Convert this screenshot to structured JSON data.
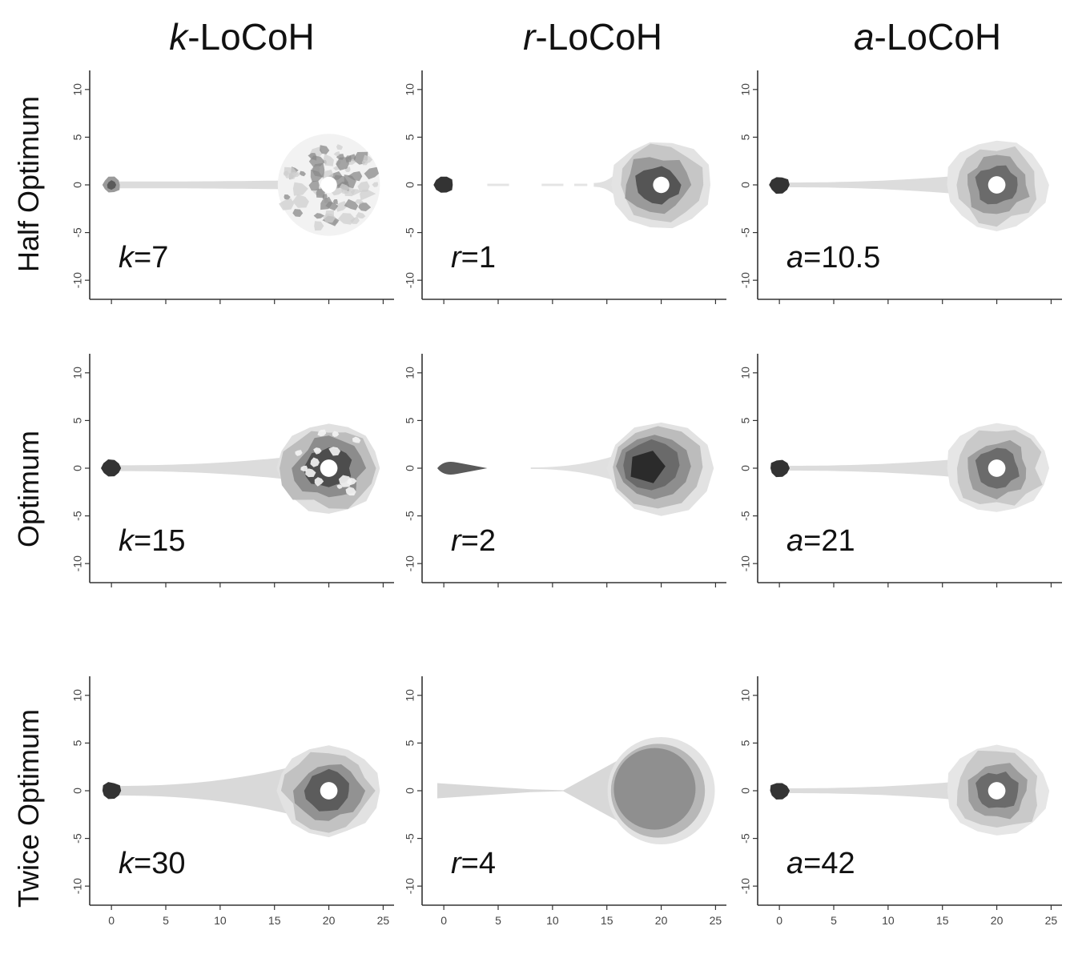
{
  "columns": [
    {
      "italic": "k",
      "suffix": "-LoCoH"
    },
    {
      "italic": "r",
      "suffix": "-LoCoH"
    },
    {
      "italic": "a",
      "suffix": "-LoCoH"
    }
  ],
  "rows": [
    "Half Optimum",
    "Optimum",
    "Twice Optimum"
  ],
  "chart_data": {
    "type": "scatter",
    "description_free": true,
    "xlim": [
      -2,
      26
    ],
    "ylim": [
      -12,
      12
    ],
    "x_ticks": [
      0,
      5,
      10,
      15,
      20,
      25
    ],
    "y_ticks": [
      -10,
      -5,
      0,
      5,
      10
    ],
    "panels": [
      {
        "row": 0,
        "col": 0,
        "param": "k",
        "value": "7",
        "style": "k-sparse"
      },
      {
        "row": 0,
        "col": 1,
        "param": "r",
        "value": "1",
        "style": "r-small"
      },
      {
        "row": 0,
        "col": 2,
        "param": "a",
        "value": "10.5",
        "style": "a"
      },
      {
        "row": 1,
        "col": 0,
        "param": "k",
        "value": "15",
        "style": "k"
      },
      {
        "row": 1,
        "col": 1,
        "param": "r",
        "value": "2",
        "style": "r-mid"
      },
      {
        "row": 1,
        "col": 2,
        "param": "a",
        "value": "21",
        "style": "a"
      },
      {
        "row": 2,
        "col": 0,
        "param": "k",
        "value": "30",
        "style": "k-wide"
      },
      {
        "row": 2,
        "col": 1,
        "param": "r",
        "value": "4",
        "style": "r-large"
      },
      {
        "row": 2,
        "col": 2,
        "param": "a",
        "value": "42",
        "style": "a"
      }
    ],
    "features": {
      "small_cluster_center": [
        0,
        0
      ],
      "large_cluster_center": [
        20,
        0
      ],
      "large_cluster_radius": 4.7,
      "corridor_x": [
        0,
        16
      ]
    }
  }
}
